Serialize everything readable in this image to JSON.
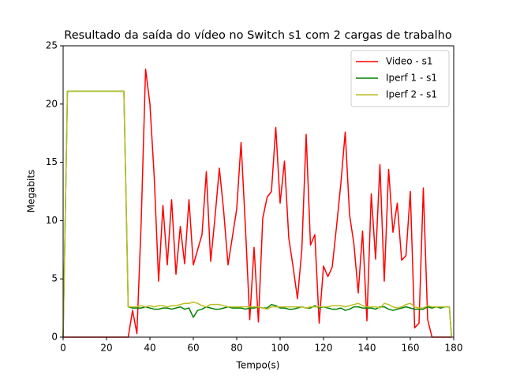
{
  "chart_data": {
    "type": "line",
    "title": "Resultado da saída do vídeo no Switch s1 com 2 cargas de trabalho",
    "x_label": "Tempo(s)",
    "y_label": "Megabits",
    "xlim": [
      0,
      180
    ],
    "ylim": [
      0,
      25
    ],
    "xticks": [
      0,
      20,
      40,
      60,
      80,
      100,
      120,
      140,
      160,
      180
    ],
    "yticks": [
      0,
      5,
      10,
      15,
      20,
      25
    ],
    "legend": "upper right",
    "x": [
      0,
      2,
      4,
      6,
      8,
      10,
      12,
      14,
      16,
      18,
      20,
      22,
      24,
      26,
      28,
      30,
      32,
      34,
      36,
      38,
      40,
      42,
      44,
      46,
      48,
      50,
      52,
      54,
      56,
      58,
      60,
      62,
      64,
      66,
      68,
      70,
      72,
      74,
      76,
      78,
      80,
      82,
      84,
      86,
      88,
      90,
      92,
      94,
      96,
      98,
      100,
      102,
      104,
      106,
      108,
      110,
      112,
      114,
      116,
      118,
      120,
      122,
      124,
      126,
      128,
      130,
      132,
      134,
      136,
      138,
      140,
      142,
      144,
      146,
      148,
      150,
      152,
      154,
      156,
      158,
      160,
      162,
      164,
      166,
      168,
      170,
      172,
      174,
      176,
      178,
      179
    ],
    "series": [
      {
        "name": "Video - s1",
        "color": "#ff0000",
        "values": [
          0,
          0,
          0,
          0,
          0,
          0,
          0,
          0,
          0,
          0,
          0,
          0,
          0,
          0,
          0,
          0,
          2.3,
          0.3,
          10,
          23,
          20,
          13.7,
          4.8,
          11.3,
          6.2,
          11.8,
          5.4,
          9.5,
          6.3,
          11.8,
          6.2,
          7.5,
          8.8,
          14.2,
          6.5,
          10.3,
          14.5,
          10.8,
          6.2,
          8.6,
          11,
          16.7,
          9.5,
          1.5,
          7.7,
          1.3,
          10.2,
          12,
          12.5,
          18,
          11.5,
          15.1,
          8.5,
          6,
          3.3,
          7.5,
          17.4,
          7.9,
          8.8,
          1.2,
          6.1,
          5.2,
          6,
          9.5,
          13.2,
          17.6,
          10.5,
          8,
          3.8,
          9.1,
          1.4,
          12.3,
          6.7,
          14.8,
          4.8,
          14.4,
          9,
          11.5,
          6.6,
          7,
          12.5,
          0.8,
          1.2,
          12.8,
          1.5,
          0,
          0,
          0,
          0,
          0,
          0
        ]
      },
      {
        "name": "Iperf 1 - s1",
        "color": "#008000",
        "values": [
          0,
          21.1,
          21.1,
          21.1,
          21.1,
          21.1,
          21.1,
          21.1,
          21.1,
          21.1,
          21.1,
          21.1,
          21.1,
          21.1,
          21.1,
          2.6,
          2.5,
          2.5,
          2.5,
          2.6,
          2.5,
          2.4,
          2.4,
          2.5,
          2.5,
          2.4,
          2.5,
          2.6,
          2.4,
          2.5,
          1.7,
          2.3,
          2.4,
          2.6,
          2.5,
          2.4,
          2.4,
          2.5,
          2.6,
          2.5,
          2.5,
          2.5,
          2.4,
          2.5,
          2.5,
          2.6,
          2.5,
          2.5,
          2.8,
          2.7,
          2.5,
          2.5,
          2.4,
          2.4,
          2.5,
          2.6,
          2.5,
          2.5,
          2.7,
          2.5,
          2.6,
          2.5,
          2.4,
          2.4,
          2.5,
          2.3,
          2.4,
          2.6,
          2.6,
          2.5,
          2.5,
          2.5,
          2.4,
          2.6,
          2.6,
          2.4,
          2.3,
          2.4,
          2.5,
          2.6,
          2.5,
          2.4,
          2.4,
          2.4,
          2.6,
          2.5,
          2.6,
          2.5,
          2.6,
          2.6,
          0
        ]
      },
      {
        "name": "Iperf 2 - s1",
        "color": "#bcbd22",
        "values": [
          0,
          21.1,
          21.1,
          21.1,
          21.1,
          21.1,
          21.1,
          21.1,
          21.1,
          21.1,
          21.1,
          21.1,
          21.1,
          21.1,
          21.1,
          2.6,
          2.6,
          2.6,
          2.7,
          2.6,
          2.7,
          2.6,
          2.7,
          2.7,
          2.6,
          2.7,
          2.7,
          2.8,
          2.9,
          2.9,
          3.0,
          2.9,
          2.7,
          2.6,
          2.8,
          2.8,
          2.8,
          2.7,
          2.6,
          2.6,
          2.6,
          2.6,
          2.6,
          2.6,
          2.6,
          2.6,
          2.5,
          2.4,
          2.6,
          2.6,
          2.6,
          2.6,
          2.6,
          2.6,
          2.6,
          2.6,
          2.5,
          2.6,
          2.6,
          2.6,
          2.6,
          2.6,
          2.7,
          2.7,
          2.7,
          2.6,
          2.7,
          2.8,
          2.9,
          2.7,
          2.6,
          2.6,
          2.6,
          2.5,
          2.9,
          2.8,
          2.6,
          2.5,
          2.6,
          2.8,
          2.9,
          2.6,
          2.5,
          2.5,
          2.7,
          2.6,
          2.6,
          2.6,
          2.6,
          2.6,
          0
        ]
      }
    ]
  }
}
